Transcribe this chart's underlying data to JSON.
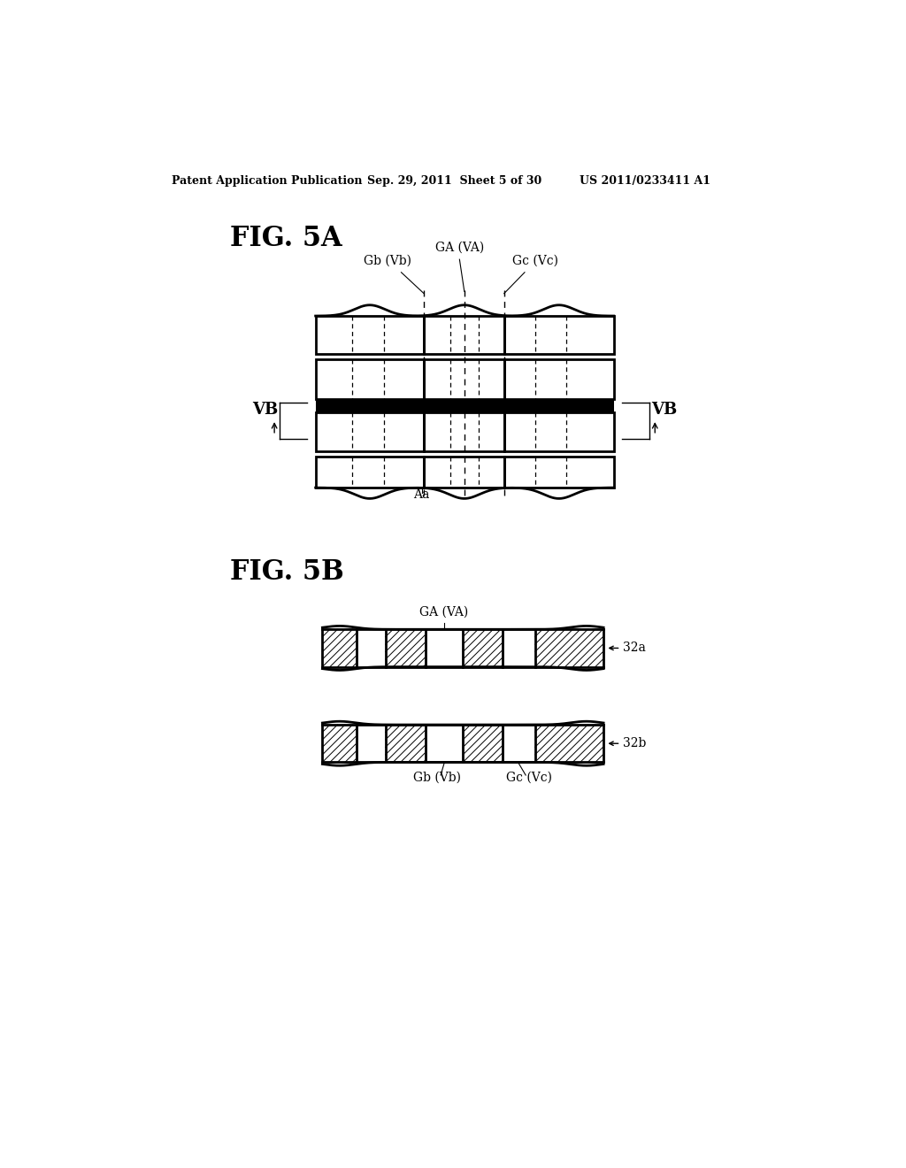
{
  "background_color": "#ffffff",
  "header_left": "Patent Application Publication",
  "header_mid": "Sep. 29, 2011  Sheet 5 of 30",
  "header_right": "US 2011/0233411 A1",
  "fig5a_label": "FIG. 5A",
  "fig5b_label": "FIG. 5B",
  "label_GA_VA": "GA (VA)",
  "label_Gb_Vb": "Gb (Vb)",
  "label_Gc_Vc": "Gc (Vc)",
  "label_VB_left": "VB",
  "label_VB_right": "VB",
  "label_Aa": "Aa",
  "label_32a": "32a",
  "label_32b": "32b",
  "label_Gb_Vb_5b": "Gb (Vb)",
  "label_Gc_Vc_5b": "Gc (Vc)"
}
